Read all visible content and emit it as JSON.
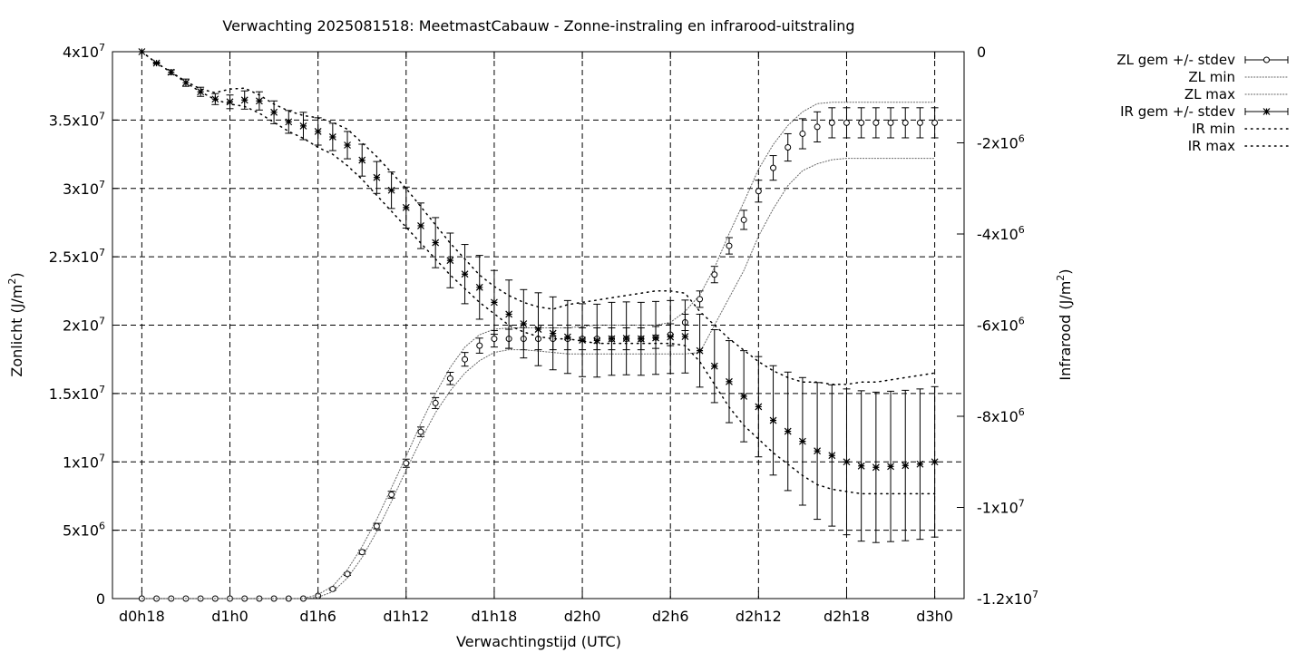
{
  "chart_data": {
    "type": "line",
    "title": "Verwachting 2025081518: MeetmastCabauw - Zonne-instraling en infrarood-uitstraling",
    "xlabel": "Verwachtingstijd (UTC)",
    "ylabel": "Zonlicht (J/m²)",
    "y2label": "Infrarood (J/m²)",
    "x_unit": "hours since forecast base (d0h18 = 0)",
    "xlim": [
      -2,
      56
    ],
    "ylim": [
      0,
      40000000
    ],
    "y2lim": [
      -12000000,
      0
    ],
    "grid": true,
    "legend_position": "top-right, outside plot",
    "x_ticks": [
      {
        "x": 0,
        "label": "d0h18"
      },
      {
        "x": 6,
        "label": "d1h0"
      },
      {
        "x": 12,
        "label": "d1h6"
      },
      {
        "x": 18,
        "label": "d1h12"
      },
      {
        "x": 24,
        "label": "d1h18"
      },
      {
        "x": 30,
        "label": "d2h0"
      },
      {
        "x": 36,
        "label": "d2h6"
      },
      {
        "x": 42,
        "label": "d2h12"
      },
      {
        "x": 48,
        "label": "d2h18"
      },
      {
        "x": 54,
        "label": "d3h0"
      }
    ],
    "y_ticks": [
      {
        "v": 0,
        "m": "0",
        "e": ""
      },
      {
        "v": 5000000,
        "m": "5x10",
        "e": "6"
      },
      {
        "v": 10000000,
        "m": "1x10",
        "e": "7"
      },
      {
        "v": 15000000,
        "m": "1.5x10",
        "e": "7"
      },
      {
        "v": 20000000,
        "m": "2x10",
        "e": "7"
      },
      {
        "v": 25000000,
        "m": "2.5x10",
        "e": "7"
      },
      {
        "v": 30000000,
        "m": "3x10",
        "e": "7"
      },
      {
        "v": 35000000,
        "m": "3.5x10",
        "e": "7"
      },
      {
        "v": 40000000,
        "m": "4x10",
        "e": "7"
      }
    ],
    "y2_ticks": [
      {
        "v": 0,
        "m": "0",
        "e": ""
      },
      {
        "v": -2000000,
        "m": "-2x10",
        "e": "6"
      },
      {
        "v": -4000000,
        "m": "-4x10",
        "e": "6"
      },
      {
        "v": -6000000,
        "m": "-6x10",
        "e": "6"
      },
      {
        "v": -8000000,
        "m": "-8x10",
        "e": "6"
      },
      {
        "v": -10000000,
        "m": "-1x10",
        "e": "7"
      },
      {
        "v": -12000000,
        "m": "-1.2x10",
        "e": "7"
      }
    ],
    "series": [
      {
        "name": "ZL gem +/- stdev",
        "axis": "y1",
        "style": "errorbars-circle",
        "x": [
          0,
          1,
          2,
          3,
          4,
          5,
          6,
          7,
          8,
          9,
          10,
          11,
          12,
          13,
          14,
          15,
          16,
          17,
          18,
          19,
          20,
          21,
          22,
          23,
          24,
          25,
          26,
          27,
          28,
          29,
          30,
          31,
          32,
          33,
          34,
          35,
          36,
          37,
          38,
          39,
          40,
          41,
          42,
          43,
          44,
          45,
          46,
          47,
          48,
          49,
          50,
          51,
          52,
          53,
          54
        ],
        "y": [
          0,
          0,
          0,
          0,
          0,
          0,
          0,
          0,
          0,
          0,
          0,
          0,
          200000,
          700000,
          1800000,
          3400000,
          5300000,
          7600000,
          9900000,
          12200000,
          14300000,
          16100000,
          17500000,
          18500000,
          19000000,
          19000000,
          19000000,
          19000000,
          19000000,
          19000000,
          19000000,
          19000000,
          19000000,
          19000000,
          19000000,
          19100000,
          19300000,
          20200000,
          21900000,
          23700000,
          25800000,
          27700000,
          29800000,
          31500000,
          33000000,
          34000000,
          34500000,
          34800000,
          34800000,
          34800000,
          34800000,
          34800000,
          34800000,
          34800000,
          34800000
        ],
        "err": [
          0,
          0,
          0,
          0,
          0,
          0,
          0,
          0,
          0,
          0,
          0,
          0,
          50000,
          80000,
          100000,
          150000,
          200000,
          250000,
          300000,
          350000,
          400000,
          450000,
          500000,
          550000,
          600000,
          700000,
          800000,
          800000,
          800000,
          800000,
          800000,
          800000,
          800000,
          800000,
          800000,
          800000,
          800000,
          600000,
          600000,
          600000,
          600000,
          700000,
          800000,
          900000,
          1000000,
          1100000,
          1100000,
          1100000,
          1100000,
          1100000,
          1100000,
          1100000,
          1100000,
          1100000,
          1100000
        ]
      },
      {
        "name": "ZL min",
        "axis": "y1",
        "style": "dotted",
        "x": [
          0,
          1,
          2,
          3,
          4,
          5,
          6,
          7,
          8,
          9,
          10,
          11,
          12,
          13,
          14,
          15,
          16,
          17,
          18,
          19,
          20,
          21,
          22,
          23,
          24,
          25,
          26,
          27,
          28,
          29,
          30,
          31,
          32,
          33,
          34,
          35,
          36,
          37,
          38,
          39,
          40,
          41,
          42,
          43,
          44,
          45,
          46,
          47,
          48,
          49,
          50,
          51,
          52,
          53,
          54
        ],
        "y": [
          0,
          0,
          0,
          0,
          0,
          0,
          0,
          0,
          0,
          0,
          0,
          0,
          100000,
          500000,
          1500000,
          3000000,
          4900000,
          7100000,
          9400000,
          11600000,
          13600000,
          15200000,
          16500000,
          17400000,
          18000000,
          18200000,
          18200000,
          18100000,
          18000000,
          17900000,
          17900000,
          17900000,
          17900000,
          17900000,
          17900000,
          17900000,
          17900000,
          17900000,
          18000000,
          20000000,
          22000000,
          24000000,
          26500000,
          28500000,
          30200000,
          31300000,
          31800000,
          32100000,
          32200000,
          32200000,
          32200000,
          32200000,
          32200000,
          32200000,
          32200000
        ]
      },
      {
        "name": "ZL max",
        "axis": "y1",
        "style": "dotted",
        "x": [
          0,
          1,
          2,
          3,
          4,
          5,
          6,
          7,
          8,
          9,
          10,
          11,
          12,
          13,
          14,
          15,
          16,
          17,
          18,
          19,
          20,
          21,
          22,
          23,
          24,
          25,
          26,
          27,
          28,
          29,
          30,
          31,
          32,
          33,
          34,
          35,
          36,
          37,
          38,
          39,
          40,
          41,
          42,
          43,
          44,
          45,
          46,
          47,
          48,
          49,
          50,
          51,
          52,
          53,
          54
        ],
        "y": [
          0,
          0,
          0,
          0,
          0,
          0,
          0,
          0,
          0,
          0,
          0,
          0,
          300000,
          900000,
          2100000,
          3800000,
          5800000,
          8100000,
          10400000,
          12800000,
          15000000,
          16900000,
          18400000,
          19300000,
          19700000,
          19800000,
          19800000,
          19800000,
          19800000,
          19800000,
          19900000,
          20000000,
          20000000,
          20000000,
          20000000,
          20000000,
          20200000,
          21000000,
          22200000,
          24200000,
          26700000,
          29000000,
          31400000,
          33200000,
          34600000,
          35600000,
          36200000,
          36300000,
          36300000,
          36300000,
          36300000,
          36300000,
          36300000,
          36300000,
          36300000
        ]
      },
      {
        "name": "IR gem +/- stdev",
        "axis": "y2",
        "style": "errorbars-star",
        "x": [
          0,
          1,
          2,
          3,
          4,
          5,
          6,
          7,
          8,
          9,
          10,
          11,
          12,
          13,
          14,
          15,
          16,
          17,
          18,
          19,
          20,
          21,
          22,
          23,
          24,
          25,
          26,
          27,
          28,
          29,
          30,
          31,
          32,
          33,
          34,
          35,
          36,
          37,
          38,
          39,
          40,
          41,
          42,
          43,
          44,
          45,
          46,
          47,
          48,
          49,
          50,
          51,
          52,
          53,
          54
        ],
        "y": [
          0,
          -250000,
          -450000,
          -680000,
          -880000,
          -1040000,
          -1100000,
          -1060000,
          -1080000,
          -1330000,
          -1540000,
          -1630000,
          -1750000,
          -1870000,
          -2050000,
          -2380000,
          -2760000,
          -3040000,
          -3420000,
          -3820000,
          -4190000,
          -4580000,
          -4880000,
          -5170000,
          -5500000,
          -5760000,
          -5970000,
          -6090000,
          -6180000,
          -6260000,
          -6330000,
          -6340000,
          -6300000,
          -6290000,
          -6300000,
          -6280000,
          -6260000,
          -6250000,
          -6560000,
          -6900000,
          -7240000,
          -7560000,
          -7790000,
          -8090000,
          -8330000,
          -8550000,
          -8760000,
          -8860000,
          -9000000,
          -9090000,
          -9120000,
          -9100000,
          -9080000,
          -9050000,
          -9000000
        ],
        "err": [
          0,
          20000,
          50000,
          80000,
          100000,
          120000,
          150000,
          200000,
          200000,
          250000,
          250000,
          300000,
          300000,
          300000,
          300000,
          350000,
          350000,
          400000,
          450000,
          500000,
          550000,
          600000,
          650000,
          700000,
          700000,
          750000,
          750000,
          800000,
          800000,
          800000,
          800000,
          800000,
          800000,
          800000,
          800000,
          800000,
          800000,
          800000,
          800000,
          800000,
          900000,
          1000000,
          1100000,
          1200000,
          1300000,
          1400000,
          1500000,
          1550000,
          1600000,
          1650000,
          1650000,
          1650000,
          1650000,
          1650000,
          1650000
        ]
      },
      {
        "name": "IR min",
        "axis": "y2",
        "style": "dotted",
        "x": [
          0,
          1,
          2,
          3,
          4,
          5,
          6,
          7,
          8,
          9,
          10,
          11,
          12,
          13,
          14,
          15,
          16,
          17,
          18,
          19,
          20,
          21,
          22,
          23,
          24,
          25,
          26,
          27,
          28,
          29,
          30,
          31,
          32,
          33,
          34,
          35,
          36,
          37,
          38,
          39,
          40,
          41,
          42,
          43,
          44,
          45,
          46,
          47,
          48,
          49,
          50,
          51,
          52,
          53,
          54
        ],
        "y": [
          0,
          -250000,
          -450000,
          -680000,
          -880000,
          -1050000,
          -1150000,
          -1200000,
          -1350000,
          -1550000,
          -1750000,
          -1900000,
          -2100000,
          -2250000,
          -2500000,
          -2800000,
          -3150000,
          -3500000,
          -3850000,
          -4200000,
          -4550000,
          -4900000,
          -5200000,
          -5500000,
          -5750000,
          -6000000,
          -6150000,
          -6250000,
          -6300000,
          -6300000,
          -6350000,
          -6400000,
          -6400000,
          -6400000,
          -6400000,
          -6400000,
          -6400000,
          -6450000,
          -6800000,
          -7300000,
          -7800000,
          -8200000,
          -8500000,
          -8800000,
          -9050000,
          -9300000,
          -9500000,
          -9600000,
          -9650000,
          -9700000,
          -9700000,
          -9700000,
          -9700000,
          -9700000,
          -9700000
        ]
      },
      {
        "name": "IR max",
        "axis": "y2",
        "style": "dotted",
        "x": [
          0,
          1,
          2,
          3,
          4,
          5,
          6,
          7,
          8,
          9,
          10,
          11,
          12,
          13,
          14,
          15,
          16,
          17,
          18,
          19,
          20,
          21,
          22,
          23,
          24,
          25,
          26,
          27,
          28,
          29,
          30,
          31,
          32,
          33,
          34,
          35,
          36,
          37,
          38,
          39,
          40,
          41,
          42,
          43,
          44,
          45,
          46,
          47,
          48,
          49,
          50,
          51,
          52,
          53,
          54
        ],
        "y": [
          0,
          -250000,
          -450000,
          -650000,
          -820000,
          -900000,
          -820000,
          -800000,
          -950000,
          -1150000,
          -1300000,
          -1400000,
          -1450000,
          -1550000,
          -1700000,
          -2000000,
          -2300000,
          -2650000,
          -3000000,
          -3400000,
          -3800000,
          -4200000,
          -4550000,
          -4900000,
          -5150000,
          -5350000,
          -5500000,
          -5600000,
          -5650000,
          -5550000,
          -5500000,
          -5450000,
          -5400000,
          -5350000,
          -5300000,
          -5250000,
          -5250000,
          -5300000,
          -5700000,
          -6000000,
          -6300000,
          -6550000,
          -6800000,
          -7000000,
          -7150000,
          -7250000,
          -7250000,
          -7300000,
          -7300000,
          -7250000,
          -7250000,
          -7200000,
          -7150000,
          -7100000,
          -7050000
        ]
      }
    ]
  }
}
